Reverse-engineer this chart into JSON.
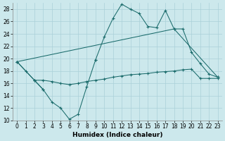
{
  "xlabel": "Humidex (Indice chaleur)",
  "bg_color": "#cce8ec",
  "grid_color": "#aad0d8",
  "line_color": "#1a6b6b",
  "x": [
    0,
    1,
    2,
    3,
    4,
    5,
    6,
    7,
    8,
    9,
    10,
    11,
    12,
    13,
    14,
    15,
    16,
    17,
    18,
    19,
    20,
    21,
    22,
    23
  ],
  "series": [
    [
      19.5,
      18.0,
      16.5,
      15.0,
      null,
      null,
      null,
      null,
      null,
      null,
      null,
      null,
      null,
      null,
      null,
      null,
      null,
      null,
      null,
      null,
      null,
      null,
      null,
      null
    ],
    [
      null,
      null,
      16.5,
      15.0,
      13.0,
      12.0,
      10.2,
      11.0,
      15.5,
      19.8,
      null,
      null,
      null,
      null,
      null,
      null,
      null,
      null,
      null,
      null,
      null,
      null,
      null,
      null
    ],
    [
      null,
      null,
      null,
      null,
      null,
      null,
      null,
      null,
      null,
      19.8,
      23.5,
      26.5,
      28.8,
      28.0,
      27.3,
      25.2,
      25.0,
      27.8,
      24.8,
      24.8,
      21.0,
      19.2,
      17.5,
      17.0
    ],
    [
      19.5,
      null,
      16.5,
      16.5,
      16.3,
      16.0,
      15.8,
      16.0,
      16.3,
      16.5,
      16.7,
      17.0,
      17.2,
      17.4,
      17.5,
      17.6,
      17.8,
      17.9,
      18.0,
      18.2,
      18.3,
      16.8,
      16.8,
      16.8
    ],
    [
      19.5,
      null,
      null,
      null,
      null,
      null,
      null,
      null,
      null,
      null,
      null,
      null,
      null,
      null,
      null,
      null,
      null,
      null,
      24.8,
      null,
      null,
      null,
      null,
      17.0
    ]
  ],
  "ylim": [
    10,
    29
  ],
  "xlim": [
    -0.5,
    23.5
  ],
  "yticks": [
    10,
    12,
    14,
    16,
    18,
    20,
    22,
    24,
    26,
    28
  ],
  "xticks": [
    0,
    1,
    2,
    3,
    4,
    5,
    6,
    7,
    8,
    9,
    10,
    11,
    12,
    13,
    14,
    15,
    16,
    17,
    18,
    19,
    20,
    21,
    22,
    23
  ],
  "tick_labelsize": 5.5,
  "xlabel_fontsize": 6.5,
  "lw": 0.75,
  "ms": 2.5,
  "mew": 0.8
}
